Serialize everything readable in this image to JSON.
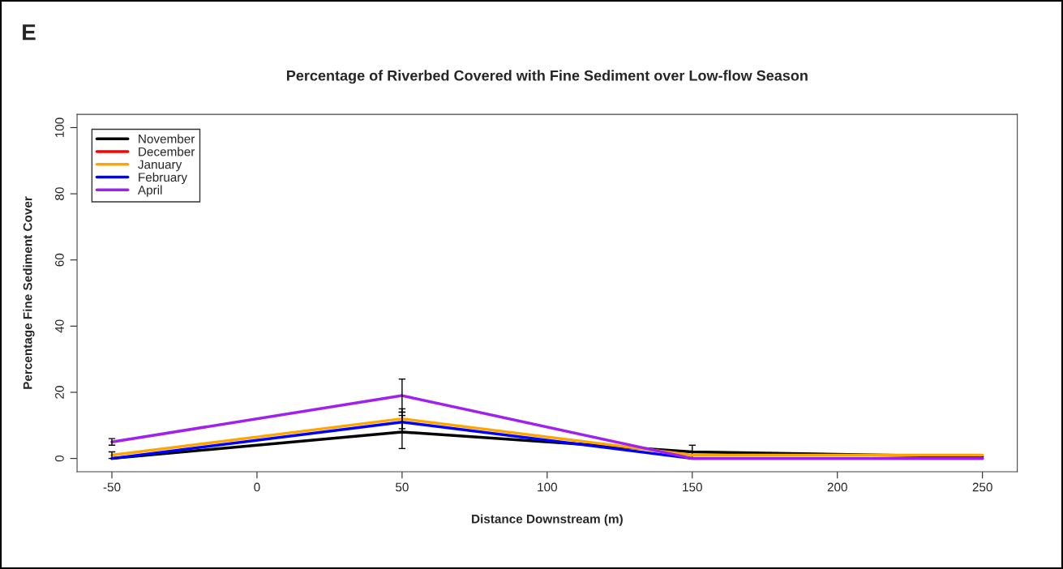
{
  "chart_data": {
    "type": "line",
    "title": "Percentage of Riverbed Covered with Fine Sediment over Low-flow Season",
    "xlabel": "Distance Downstream (m)",
    "ylabel": "Percentage Fine Sediment Cover",
    "annotations": [
      "E"
    ],
    "x": [
      -50,
      50,
      150,
      250
    ],
    "series": [
      {
        "name": "November",
        "color": "#000000",
        "values": [
          0,
          8,
          2,
          0.5
        ],
        "errors": [
          null,
          5,
          2,
          null
        ]
      },
      {
        "name": "December",
        "color": "#ff0000",
        "values": [
          null,
          null,
          null,
          null
        ]
      },
      {
        "name": "January",
        "color": "#ffa500",
        "values": [
          1,
          12,
          1,
          1
        ],
        "errors": [
          1,
          3,
          null,
          null
        ]
      },
      {
        "name": "February",
        "color": "#0000ff",
        "values": [
          0,
          11,
          0,
          0
        ],
        "errors": [
          null,
          3,
          null,
          null
        ]
      },
      {
        "name": "April",
        "color": "#a020f0",
        "values": [
          5,
          19,
          0,
          0
        ],
        "errors": [
          1,
          5,
          null,
          null
        ]
      }
    ],
    "xlim": [
      -62,
      262
    ],
    "ylim": [
      -4,
      104
    ],
    "xticks": [
      -50,
      0,
      50,
      100,
      150,
      200,
      250
    ],
    "yticks": [
      0,
      20,
      40,
      60,
      80,
      100
    ],
    "grid": false,
    "legend": "top left",
    "marker": "none",
    "line_style": "solid"
  }
}
